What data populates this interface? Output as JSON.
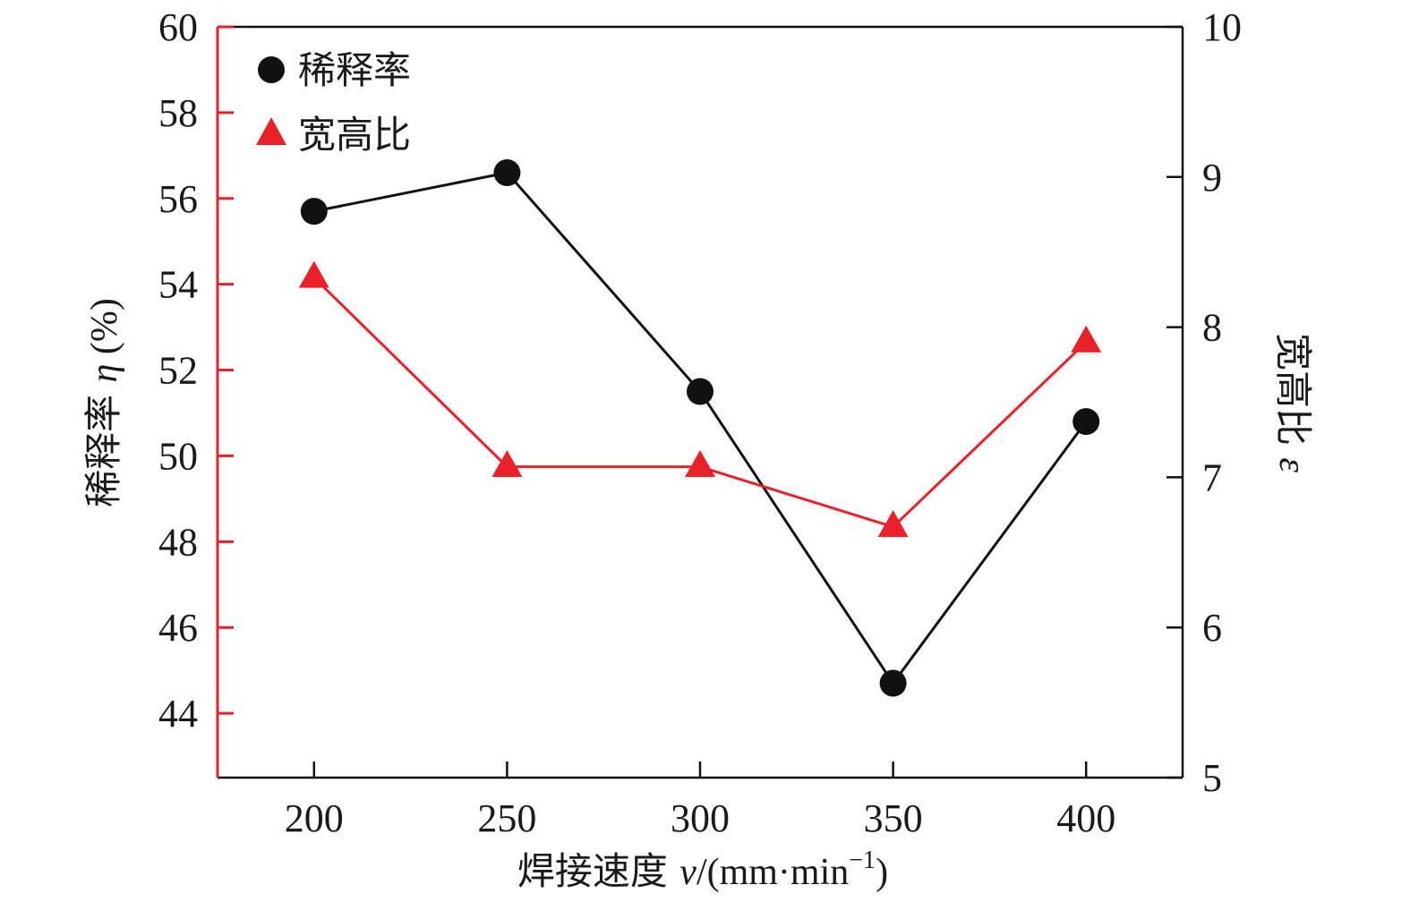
{
  "chart_data": {
    "type": "line",
    "x": [
      200,
      250,
      300,
      350,
      400
    ],
    "xlabel": {
      "main": "焊接速度 ",
      "var": "v",
      "unit": "/(mm·min",
      "exp": "−1",
      "close": ")"
    },
    "ylabel_left": {
      "main": "稀释率 ",
      "var": "η",
      "unit": " (%)"
    },
    "ylabel_right": {
      "main": "宽高比 ",
      "var": "ε"
    },
    "xlim": [
      175,
      425
    ],
    "ylim_left": [
      42.5,
      60
    ],
    "ylim_right": [
      5,
      10
    ],
    "xticks": [
      "200",
      "250",
      "300",
      "350",
      "400"
    ],
    "yticks_left": [
      "44",
      "46",
      "48",
      "50",
      "52",
      "54",
      "56",
      "58",
      "60"
    ],
    "yticks_right": [
      "5",
      "6",
      "7",
      "8",
      "9",
      "10"
    ],
    "series": [
      {
        "name": "稀释率",
        "axis": "left",
        "marker": "circle",
        "color": "#111111",
        "values": [
          55.7,
          56.6,
          51.5,
          44.7,
          50.8
        ]
      },
      {
        "name": "宽高比",
        "axis": "right",
        "marker": "triangle",
        "color": "#e8212a",
        "values": [
          8.33,
          7.07,
          7.07,
          6.67,
          7.9
        ]
      }
    ],
    "legend_position": "top-left",
    "left_axis_color": "#e8212a"
  }
}
